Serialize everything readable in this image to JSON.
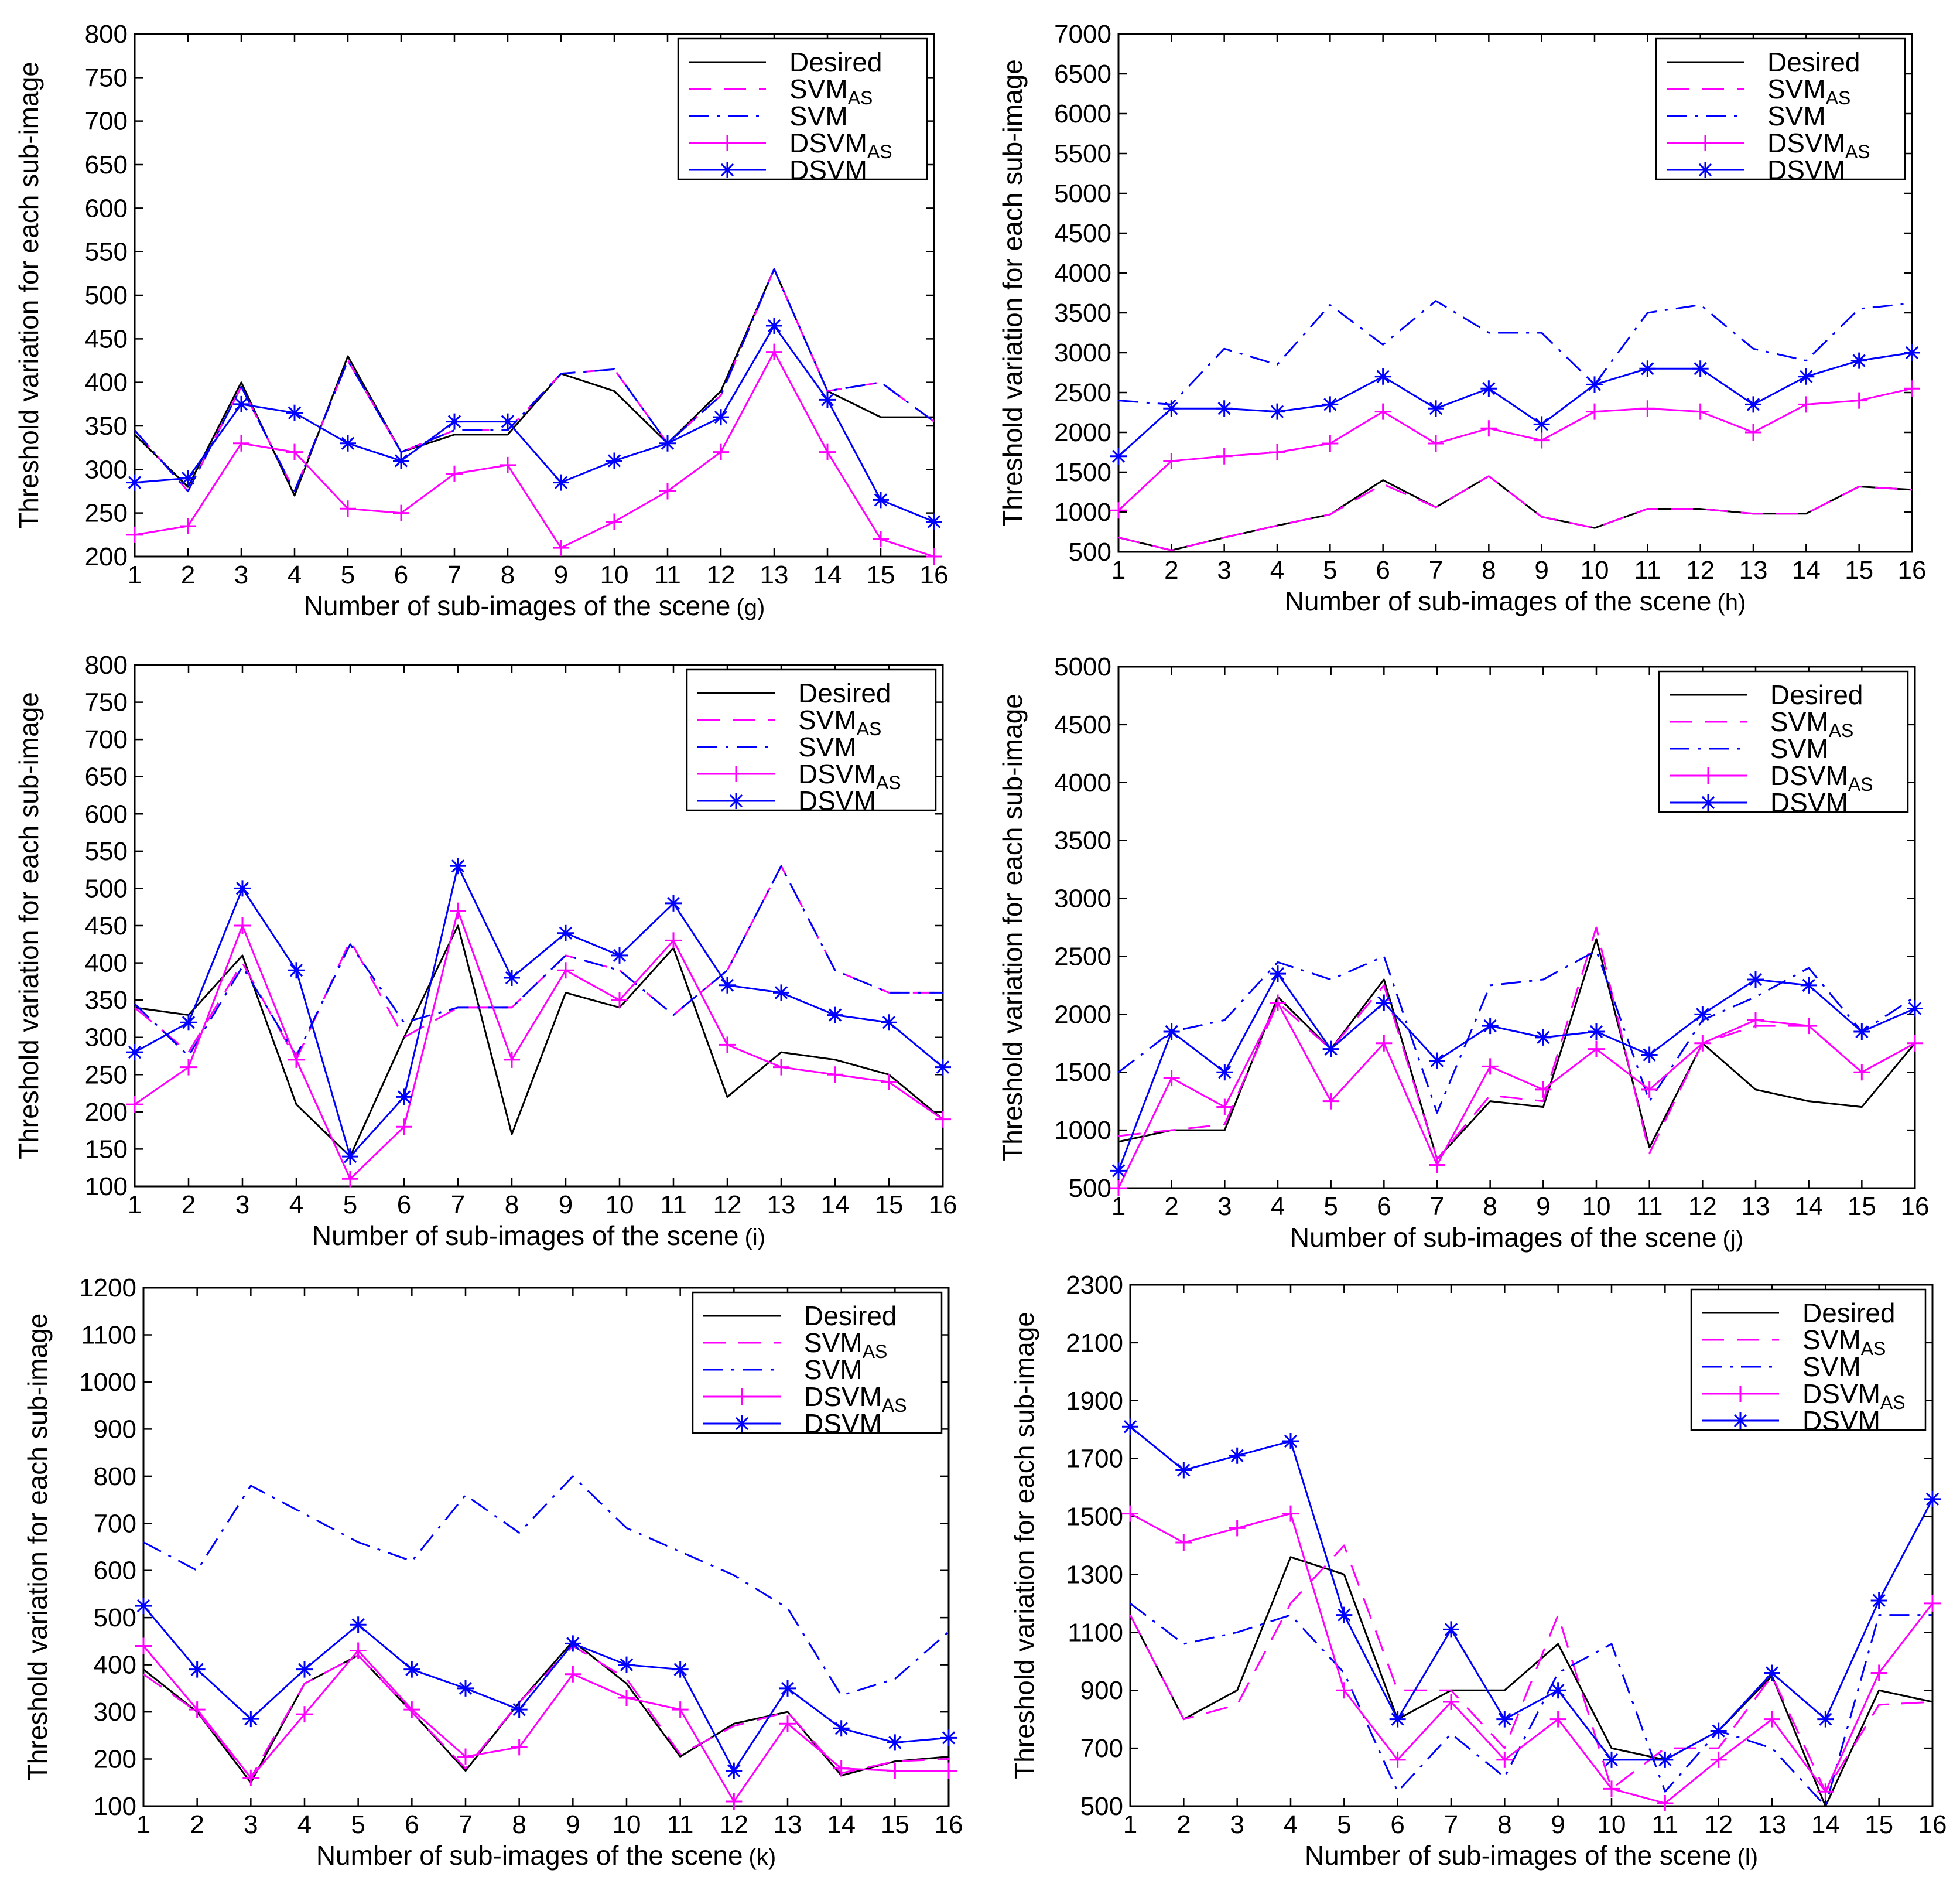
{
  "chart_data": [
    {
      "id": "g",
      "type": "line",
      "xlabel": "Number of sub-images of the scene",
      "panel_letter": "(g)",
      "ylabel": "Threshold variation for each sub-image",
      "xlim": [
        1,
        16
      ],
      "ylim": [
        200,
        800
      ],
      "xticks": [
        1,
        2,
        3,
        4,
        5,
        6,
        7,
        8,
        9,
        10,
        11,
        12,
        13,
        14,
        15,
        16
      ],
      "yticks": [
        200,
        250,
        300,
        350,
        400,
        450,
        500,
        550,
        600,
        650,
        700,
        750,
        800
      ],
      "series": [
        {
          "name": "Desired",
          "values": [
            340,
            280,
            400,
            270,
            430,
            320,
            340,
            340,
            410,
            390,
            330,
            390,
            530,
            390,
            360,
            360
          ]
        },
        {
          "name": "SVM",
          "sub": "AS",
          "values": [
            345,
            275,
            395,
            275,
            425,
            320,
            345,
            345,
            410,
            415,
            330,
            385,
            530,
            390,
            400,
            355
          ]
        },
        {
          "name": "SVM",
          "values": [
            345,
            275,
            395,
            275,
            425,
            320,
            345,
            345,
            410,
            415,
            330,
            385,
            530,
            390,
            400,
            355
          ]
        },
        {
          "name": "DSVM",
          "sub": "AS",
          "values": [
            225,
            235,
            330,
            320,
            255,
            250,
            295,
            305,
            210,
            240,
            275,
            320,
            435,
            320,
            220,
            200
          ]
        },
        {
          "name": "DSVM",
          "values": [
            285,
            290,
            375,
            365,
            330,
            310,
            355,
            355,
            285,
            310,
            330,
            360,
            465,
            380,
            265,
            240
          ]
        }
      ]
    },
    {
      "id": "h",
      "type": "line",
      "xlabel": "Number of sub-images of the scene",
      "panel_letter": "(h)",
      "ylabel": "Threshold variation for each sub-image",
      "xlim": [
        1,
        16
      ],
      "ylim": [
        500,
        7000
      ],
      "xticks": [
        1,
        2,
        3,
        4,
        5,
        6,
        7,
        8,
        9,
        10,
        11,
        12,
        13,
        14,
        15,
        16
      ],
      "yticks": [
        500,
        1000,
        1500,
        2000,
        2500,
        3000,
        3500,
        4000,
        4500,
        5000,
        5500,
        6000,
        6500,
        7000
      ],
      "series": [
        {
          "name": "Desired",
          "values": [
            680,
            520,
            680,
            830,
            970,
            1400,
            1060,
            1450,
            940,
            800,
            1040,
            1040,
            980,
            980,
            1320,
            1280
          ]
        },
        {
          "name": "SVM",
          "sub": "AS",
          "values": [
            680,
            520,
            680,
            830,
            970,
            1350,
            1060,
            1450,
            940,
            800,
            1040,
            1040,
            980,
            980,
            1320,
            1280
          ]
        },
        {
          "name": "SVM",
          "values": [
            2400,
            2350,
            3050,
            2850,
            3600,
            3100,
            3650,
            3250,
            3250,
            2600,
            3500,
            3600,
            3050,
            2900,
            3550,
            3620
          ]
        },
        {
          "name": "DSVM",
          "sub": "AS",
          "values": [
            1020,
            1640,
            1700,
            1750,
            1860,
            2260,
            1860,
            2050,
            1900,
            2260,
            2300,
            2260,
            2000,
            2350,
            2400,
            2550
          ]
        },
        {
          "name": "DSVM",
          "values": [
            1700,
            2300,
            2300,
            2260,
            2350,
            2700,
            2300,
            2550,
            2100,
            2600,
            2800,
            2800,
            2350,
            2700,
            2900,
            3000
          ]
        }
      ]
    },
    {
      "id": "i",
      "type": "line",
      "xlabel": "Number of sub-images of the scene",
      "panel_letter": "(i)",
      "ylabel": "Threshold variation for each sub-image",
      "xlim": [
        1,
        16
      ],
      "ylim": [
        100,
        800
      ],
      "xticks": [
        1,
        2,
        3,
        4,
        5,
        6,
        7,
        8,
        9,
        10,
        11,
        12,
        13,
        14,
        15,
        16
      ],
      "yticks": [
        100,
        150,
        200,
        250,
        300,
        350,
        400,
        450,
        500,
        550,
        600,
        650,
        700,
        750,
        800
      ],
      "series": [
        {
          "name": "Desired",
          "values": [
            340,
            330,
            410,
            210,
            140,
            300,
            450,
            170,
            360,
            340,
            420,
            220,
            280,
            270,
            250,
            190
          ]
        },
        {
          "name": "SVM",
          "sub": "AS",
          "values": [
            340,
            280,
            400,
            270,
            430,
            300,
            340,
            340,
            410,
            390,
            330,
            390,
            530,
            390,
            360,
            360
          ]
        },
        {
          "name": "SVM",
          "values": [
            345,
            275,
            395,
            275,
            425,
            320,
            340,
            340,
            410,
            390,
            330,
            390,
            530,
            390,
            360,
            360
          ]
        },
        {
          "name": "DSVM",
          "sub": "AS",
          "values": [
            210,
            260,
            450,
            270,
            110,
            180,
            470,
            270,
            390,
            350,
            430,
            290,
            260,
            250,
            240,
            190
          ]
        },
        {
          "name": "DSVM",
          "values": [
            280,
            320,
            500,
            390,
            140,
            220,
            530,
            380,
            440,
            410,
            480,
            370,
            360,
            330,
            320,
            260
          ]
        }
      ]
    },
    {
      "id": "j",
      "type": "line",
      "xlabel": "Number of sub-images of the scene",
      "panel_letter": "(j)",
      "ylabel": "Threshold variation for each sub-image",
      "xlim": [
        1,
        16
      ],
      "ylim": [
        500,
        5000
      ],
      "xticks": [
        1,
        2,
        3,
        4,
        5,
        6,
        7,
        8,
        9,
        10,
        11,
        12,
        13,
        14,
        15,
        16
      ],
      "yticks": [
        500,
        1000,
        1500,
        2000,
        2500,
        3000,
        3500,
        4000,
        4500,
        5000
      ],
      "series": [
        {
          "name": "Desired",
          "values": [
            900,
            1000,
            1000,
            2150,
            1700,
            2300,
            750,
            1250,
            1200,
            2650,
            850,
            1750,
            1350,
            1250,
            1200,
            1750
          ]
        },
        {
          "name": "SVM",
          "sub": "AS",
          "values": [
            950,
            1000,
            1050,
            2100,
            1700,
            2250,
            750,
            1300,
            1250,
            2750,
            800,
            1750,
            1900,
            1900,
            1500,
            1750
          ]
        },
        {
          "name": "SVM",
          "values": [
            1500,
            1850,
            1950,
            2450,
            2300,
            2500,
            1150,
            2250,
            2300,
            2550,
            1250,
            1950,
            2150,
            2400,
            1850,
            2150
          ]
        },
        {
          "name": "DSVM",
          "sub": "AS",
          "values": [
            500,
            1450,
            1200,
            2100,
            1250,
            1750,
            700,
            1550,
            1350,
            1700,
            1350,
            1750,
            1950,
            1900,
            1500,
            1750
          ]
        },
        {
          "name": "DSVM",
          "values": [
            650,
            1850,
            1500,
            2350,
            1700,
            2100,
            1600,
            1900,
            1800,
            1850,
            1650,
            2000,
            2300,
            2250,
            1850,
            2050
          ]
        }
      ]
    },
    {
      "id": "k",
      "type": "line",
      "xlabel": "Number of sub-images of the scene",
      "panel_letter": "(k)",
      "ylabel": "Threshold variation for each sub-image",
      "xlim": [
        1,
        16
      ],
      "ylim": [
        100,
        1200
      ],
      "xticks": [
        1,
        2,
        3,
        4,
        5,
        6,
        7,
        8,
        9,
        10,
        11,
        12,
        13,
        14,
        15,
        16
      ],
      "yticks": [
        100,
        200,
        300,
        400,
        500,
        600,
        700,
        800,
        900,
        1000,
        1100,
        1200
      ],
      "series": [
        {
          "name": "Desired",
          "values": [
            390,
            300,
            150,
            360,
            420,
            300,
            175,
            320,
            450,
            360,
            205,
            275,
            300,
            165,
            195,
            205
          ]
        },
        {
          "name": "SVM",
          "sub": "AS",
          "values": [
            380,
            300,
            160,
            360,
            420,
            300,
            180,
            320,
            440,
            370,
            210,
            270,
            300,
            170,
            195,
            200
          ]
        },
        {
          "name": "SVM",
          "values": [
            660,
            600,
            780,
            720,
            660,
            620,
            760,
            680,
            800,
            690,
            640,
            590,
            520,
            335,
            370,
            470
          ]
        },
        {
          "name": "DSVM",
          "sub": "AS",
          "values": [
            440,
            305,
            160,
            295,
            430,
            305,
            205,
            225,
            380,
            330,
            305,
            110,
            275,
            180,
            175,
            175
          ]
        },
        {
          "name": "DSVM",
          "values": [
            525,
            390,
            285,
            390,
            485,
            390,
            350,
            305,
            445,
            400,
            390,
            175,
            350,
            265,
            235,
            245
          ]
        }
      ]
    },
    {
      "id": "l",
      "type": "line",
      "xlabel": "Number of sub-images of the scene",
      "panel_letter": "(l)",
      "ylabel": "Threshold variation for each sub-image",
      "xlim": [
        1,
        16
      ],
      "ylim": [
        500,
        2300
      ],
      "xticks": [
        1,
        2,
        3,
        4,
        5,
        6,
        7,
        8,
        9,
        10,
        11,
        12,
        13,
        14,
        15,
        16
      ],
      "yticks": [
        500,
        700,
        900,
        1100,
        1300,
        1500,
        1700,
        1900,
        2100,
        2300
      ],
      "series": [
        {
          "name": "Desired",
          "values": [
            1160,
            800,
            900,
            1360,
            1300,
            800,
            900,
            900,
            1060,
            700,
            660,
            760,
            950,
            500,
            900,
            860
          ]
        },
        {
          "name": "SVM",
          "sub": "AS",
          "values": [
            1160,
            800,
            850,
            1200,
            1400,
            900,
            900,
            700,
            1160,
            560,
            700,
            700,
            950,
            550,
            850,
            860
          ]
        },
        {
          "name": "SVM",
          "values": [
            1200,
            1060,
            1100,
            1160,
            960,
            550,
            750,
            600,
            960,
            1060,
            550,
            760,
            700,
            500,
            1160,
            1160
          ]
        },
        {
          "name": "DSVM",
          "sub": "AS",
          "values": [
            1510,
            1410,
            1460,
            1510,
            900,
            660,
            860,
            660,
            800,
            560,
            510,
            660,
            800,
            550,
            960,
            1200
          ]
        },
        {
          "name": "DSVM",
          "values": [
            1810,
            1660,
            1710,
            1760,
            1160,
            800,
            1110,
            800,
            900,
            660,
            660,
            760,
            960,
            800,
            1210,
            1560
          ]
        }
      ]
    }
  ],
  "series_styles": [
    {
      "color": "#000000",
      "dash": "",
      "marker": "none"
    },
    {
      "color": "#ff00ff",
      "dash": "38 22",
      "marker": "none"
    },
    {
      "color": "#0000ff",
      "dash": "34 14 5 14",
      "marker": "none"
    },
    {
      "color": "#ff00ff",
      "dash": "",
      "marker": "plus"
    },
    {
      "color": "#0000ff",
      "dash": "",
      "marker": "star"
    }
  ]
}
